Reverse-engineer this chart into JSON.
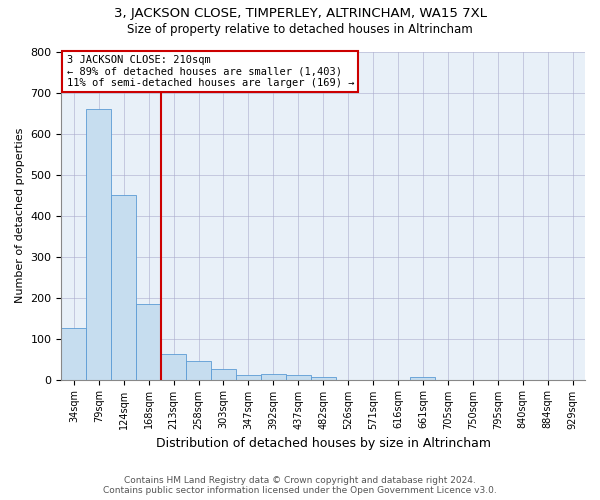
{
  "title1": "3, JACKSON CLOSE, TIMPERLEY, ALTRINCHAM, WA15 7XL",
  "title2": "Size of property relative to detached houses in Altrincham",
  "xlabel": "Distribution of detached houses by size in Altrincham",
  "ylabel": "Number of detached properties",
  "bar_labels": [
    "34sqm",
    "79sqm",
    "124sqm",
    "168sqm",
    "213sqm",
    "258sqm",
    "303sqm",
    "347sqm",
    "392sqm",
    "437sqm",
    "482sqm",
    "526sqm",
    "571sqm",
    "616sqm",
    "661sqm",
    "705sqm",
    "750sqm",
    "795sqm",
    "840sqm",
    "884sqm",
    "929sqm"
  ],
  "bar_values": [
    125,
    660,
    450,
    185,
    62,
    46,
    25,
    10,
    13,
    12,
    6,
    0,
    0,
    0,
    6,
    0,
    0,
    0,
    0,
    0,
    0
  ],
  "annotation_line1": "3 JACKSON CLOSE: 210sqm",
  "annotation_line2": "← 89% of detached houses are smaller (1,403)",
  "annotation_line3": "11% of semi-detached houses are larger (169) →",
  "footer1": "Contains HM Land Registry data © Crown copyright and database right 2024.",
  "footer2": "Contains public sector information licensed under the Open Government Licence v3.0.",
  "bar_color": "#c6ddef",
  "bar_edge_color": "#5b9bd5",
  "line_color": "#cc0000",
  "annotation_box_color": "#ffffff",
  "annotation_box_edge": "#cc0000",
  "ylim": [
    0,
    800
  ],
  "yticks": [
    0,
    100,
    200,
    300,
    400,
    500,
    600,
    700,
    800
  ],
  "property_bin_index": 4,
  "bg_color": "#e8f0f8"
}
